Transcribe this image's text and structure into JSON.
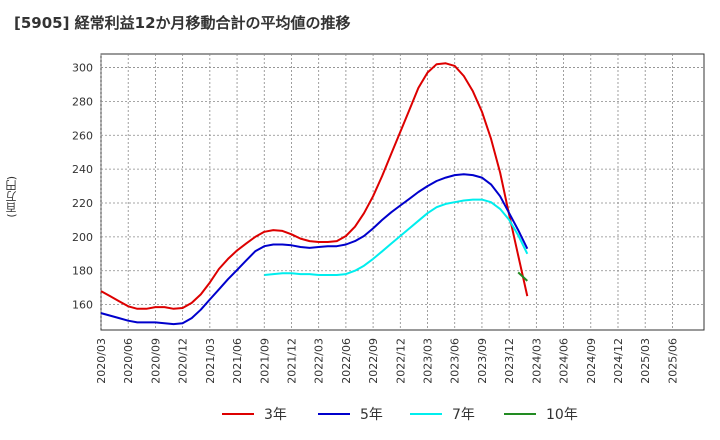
{
  "chart_data": {
    "type": "line",
    "title": "[5905]  経常利益12か月移動合計の平均値の推移",
    "ylabel": "(百万円)",
    "xlabel": "",
    "ylim": [
      145,
      308
    ],
    "y_ticks": [
      160,
      180,
      200,
      220,
      240,
      260,
      280,
      300
    ],
    "x_tick_labels": [
      "2020/03",
      "2020/06",
      "2020/09",
      "2020/12",
      "2021/03",
      "2021/06",
      "2021/09",
      "2021/12",
      "2022/03",
      "2022/06",
      "2022/09",
      "2022/12",
      "2023/03",
      "2023/06",
      "2023/09",
      "2023/12",
      "2024/03",
      "2024/06",
      "2024/09",
      "2024/12",
      "2025/03",
      "2025/06"
    ],
    "grid": true,
    "legend_position": "bottom",
    "series": [
      {
        "name": "3年",
        "color": "#dd0000",
        "points": [
          [
            0,
            168
          ],
          [
            1,
            165
          ],
          [
            2,
            162
          ],
          [
            3,
            159
          ],
          [
            4,
            157.5
          ],
          [
            5,
            157.5
          ],
          [
            6,
            158.5
          ],
          [
            7,
            158.5
          ],
          [
            8,
            157.5
          ],
          [
            9,
            158
          ],
          [
            10,
            161
          ],
          [
            11,
            166
          ],
          [
            12,
            173
          ],
          [
            13,
            181
          ],
          [
            14,
            187
          ],
          [
            15,
            192
          ],
          [
            16,
            196
          ],
          [
            17,
            200
          ],
          [
            18,
            203
          ],
          [
            19,
            204
          ],
          [
            20,
            203.5
          ],
          [
            21,
            201.5
          ],
          [
            22,
            199
          ],
          [
            23,
            197.5
          ],
          [
            24,
            197
          ],
          [
            25,
            197
          ],
          [
            26,
            197.5
          ],
          [
            27,
            200.5
          ],
          [
            28,
            206
          ],
          [
            29,
            214
          ],
          [
            30,
            224
          ],
          [
            31,
            236
          ],
          [
            32,
            249
          ],
          [
            33,
            262
          ],
          [
            34,
            275
          ],
          [
            35,
            288
          ],
          [
            36,
            297
          ],
          [
            37,
            302
          ],
          [
            38,
            302.5
          ],
          [
            39,
            301
          ],
          [
            40,
            295
          ],
          [
            41,
            286
          ],
          [
            42,
            274
          ],
          [
            43,
            258
          ],
          [
            44,
            238
          ],
          [
            45,
            213
          ],
          [
            46,
            189
          ],
          [
            47,
            165
          ]
        ]
      },
      {
        "name": "5年",
        "color": "#0000cc",
        "points": [
          [
            0,
            155
          ],
          [
            1,
            153.5
          ],
          [
            2,
            152
          ],
          [
            3,
            150.5
          ],
          [
            4,
            149.5
          ],
          [
            5,
            149.5
          ],
          [
            6,
            149.5
          ],
          [
            7,
            149
          ],
          [
            8,
            148.5
          ],
          [
            9,
            149
          ],
          [
            10,
            152
          ],
          [
            11,
            157
          ],
          [
            12,
            163
          ],
          [
            13,
            169
          ],
          [
            14,
            175
          ],
          [
            15,
            180.5
          ],
          [
            16,
            186
          ],
          [
            17,
            191.5
          ],
          [
            18,
            194.5
          ],
          [
            19,
            195.5
          ],
          [
            20,
            195.5
          ],
          [
            21,
            195
          ],
          [
            22,
            194
          ],
          [
            23,
            193.5
          ],
          [
            24,
            194
          ],
          [
            25,
            194.5
          ],
          [
            26,
            194.5
          ],
          [
            27,
            195.5
          ],
          [
            28,
            197.5
          ],
          [
            29,
            200.5
          ],
          [
            30,
            205
          ],
          [
            31,
            210
          ],
          [
            32,
            214.5
          ],
          [
            33,
            218.5
          ],
          [
            34,
            222.5
          ],
          [
            35,
            226.5
          ],
          [
            36,
            230
          ],
          [
            37,
            233
          ],
          [
            38,
            235
          ],
          [
            39,
            236.5
          ],
          [
            40,
            237
          ],
          [
            41,
            236.5
          ],
          [
            42,
            235
          ],
          [
            43,
            231
          ],
          [
            44,
            224
          ],
          [
            45,
            214
          ],
          [
            46,
            204
          ],
          [
            47,
            193
          ]
        ]
      },
      {
        "name": "7年",
        "color": "#00eeee",
        "points": [
          [
            18,
            177.5
          ],
          [
            19,
            178
          ],
          [
            20,
            178.5
          ],
          [
            21,
            178.5
          ],
          [
            22,
            178
          ],
          [
            23,
            178
          ],
          [
            24,
            177.5
          ],
          [
            25,
            177.5
          ],
          [
            26,
            177.5
          ],
          [
            27,
            178
          ],
          [
            28,
            180
          ],
          [
            29,
            183
          ],
          [
            30,
            187
          ],
          [
            31,
            191.5
          ],
          [
            32,
            196
          ],
          [
            33,
            200.5
          ],
          [
            34,
            205
          ],
          [
            35,
            209.5
          ],
          [
            36,
            214
          ],
          [
            37,
            217.5
          ],
          [
            38,
            219.5
          ],
          [
            39,
            220.5
          ],
          [
            40,
            221.5
          ],
          [
            41,
            222
          ],
          [
            42,
            222
          ],
          [
            43,
            220.5
          ],
          [
            44,
            216.5
          ],
          [
            45,
            210
          ],
          [
            46,
            201
          ],
          [
            47,
            190
          ]
        ]
      },
      {
        "name": "10年",
        "color": "#228b22",
        "points": [
          [
            46,
            179
          ],
          [
            47,
            174
          ]
        ]
      }
    ]
  }
}
